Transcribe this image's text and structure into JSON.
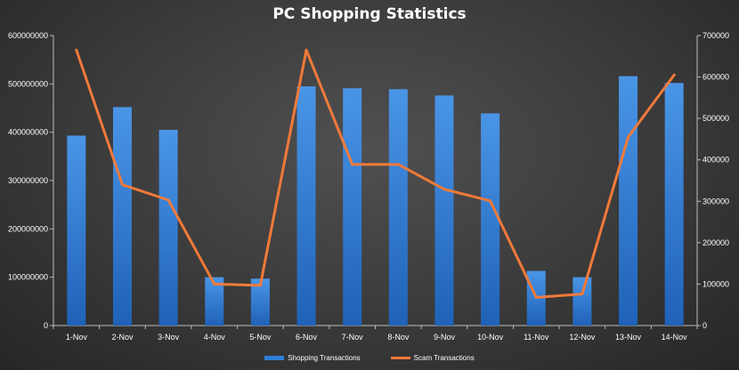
{
  "chart_data": {
    "type": "bar",
    "title": "PC Shopping Statistics",
    "categories": [
      "1-Nov",
      "2-Nov",
      "3-Nov",
      "4-Nov",
      "5-Nov",
      "6-Nov",
      "7-Nov",
      "8-Nov",
      "9-Nov",
      "10-Nov",
      "11-Nov",
      "12-Nov",
      "13-Nov",
      "14-Nov"
    ],
    "series": [
      {
        "name": "Shopping Transactions",
        "type": "bar",
        "axis": "left",
        "color": "#2f7fd6",
        "values": [
          393000000,
          452000000,
          405000000,
          100000000,
          97000000,
          495000000,
          491000000,
          489000000,
          476000000,
          439000000,
          113000000,
          100000000,
          516000000,
          502000000
        ]
      },
      {
        "name": "Scam Transactions",
        "type": "line",
        "axis": "right",
        "color": "#f07a3a",
        "values": [
          665000,
          340000,
          303000,
          100000,
          97000,
          665000,
          389000,
          389000,
          329000,
          301000,
          68000,
          76000,
          455000,
          605000
        ]
      }
    ],
    "y_left": {
      "min": 0,
      "max": 600000000,
      "ticks": [
        "0",
        "100000000",
        "200000000",
        "300000000",
        "400000000",
        "500000000",
        "600000000"
      ]
    },
    "y_right": {
      "min": 0,
      "max": 700000,
      "ticks": [
        "0",
        "100000",
        "200000",
        "300000",
        "400000",
        "500000",
        "600000",
        "700000"
      ]
    },
    "legend_position": "bottom",
    "grid": false
  }
}
